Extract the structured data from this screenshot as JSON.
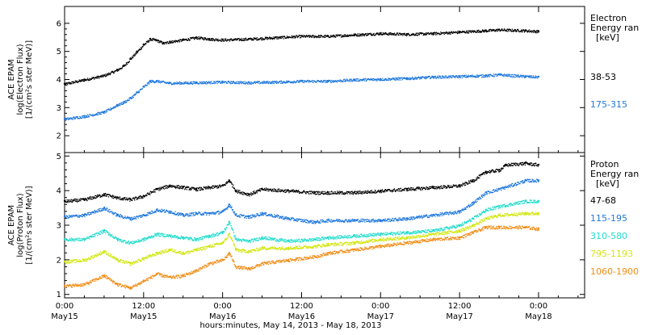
{
  "chart_data": [
    {
      "type": "scatter",
      "panel": "electron",
      "ylabel": [
        "ACE EPAM",
        "log(Electron Flux)",
        "[1/(cm²s ster MeV)]"
      ],
      "ylim": [
        1.4,
        6.6
      ],
      "yticks": [
        2,
        3,
        4,
        5,
        6
      ],
      "legend_title": [
        "Electron",
        "Energy ran",
        "[keV]"
      ],
      "series": [
        {
          "name": "38-53",
          "color": "#000000",
          "points": [
            [
              0,
              3.85
            ],
            [
              3,
              4.0
            ],
            [
              6,
              4.15
            ],
            [
              8,
              4.35
            ],
            [
              9,
              4.5
            ],
            [
              10,
              4.75
            ],
            [
              11,
              5.0
            ],
            [
              12,
              5.25
            ],
            [
              13,
              5.45
            ],
            [
              14,
              5.4
            ],
            [
              15,
              5.3
            ],
            [
              16,
              5.35
            ],
            [
              18,
              5.42
            ],
            [
              20,
              5.5
            ],
            [
              22,
              5.45
            ],
            [
              24,
              5.42
            ],
            [
              28,
              5.45
            ],
            [
              32,
              5.5
            ],
            [
              36,
              5.55
            ],
            [
              40,
              5.55
            ],
            [
              44,
              5.6
            ],
            [
              48,
              5.65
            ],
            [
              52,
              5.62
            ],
            [
              56,
              5.65
            ],
            [
              60,
              5.7
            ],
            [
              64,
              5.75
            ],
            [
              66,
              5.78
            ],
            [
              70,
              5.75
            ],
            [
              72,
              5.72
            ]
          ]
        },
        {
          "name": "175-315",
          "color": "#1e78dc",
          "points": [
            [
              0,
              2.6
            ],
            [
              3,
              2.7
            ],
            [
              6,
              2.85
            ],
            [
              8,
              3.1
            ],
            [
              9,
              3.2
            ],
            [
              10,
              3.35
            ],
            [
              11,
              3.55
            ],
            [
              12,
              3.75
            ],
            [
              13,
              3.95
            ],
            [
              14,
              3.95
            ],
            [
              16,
              3.88
            ],
            [
              20,
              3.9
            ],
            [
              24,
              3.92
            ],
            [
              28,
              3.9
            ],
            [
              32,
              3.92
            ],
            [
              36,
              3.95
            ],
            [
              40,
              3.95
            ],
            [
              44,
              4.0
            ],
            [
              48,
              4.02
            ],
            [
              52,
              4.05
            ],
            [
              56,
              4.1
            ],
            [
              60,
              4.12
            ],
            [
              64,
              4.15
            ],
            [
              66,
              4.18
            ],
            [
              70,
              4.12
            ],
            [
              72,
              4.1
            ]
          ]
        }
      ]
    },
    {
      "type": "scatter",
      "panel": "proton",
      "ylabel": [
        "ACE EPAM",
        "log(Proton Flux)",
        "[1/(cm²s ster MeV)]"
      ],
      "ylim": [
        0.9,
        5.1
      ],
      "yticks": [
        1,
        2,
        3,
        4,
        5
      ],
      "legend_title": [
        "Proton",
        "Energy ran",
        "[keV]"
      ],
      "series": [
        {
          "name": "47-68",
          "color": "#000000",
          "points": [
            [
              0,
              3.7
            ],
            [
              3,
              3.75
            ],
            [
              6,
              3.9
            ],
            [
              8,
              3.8
            ],
            [
              10,
              3.75
            ],
            [
              12,
              3.85
            ],
            [
              14,
              4.05
            ],
            [
              16,
              4.15
            ],
            [
              18,
              4.1
            ],
            [
              20,
              4.05
            ],
            [
              22,
              4.1
            ],
            [
              24,
              4.15
            ],
            [
              25,
              4.3
            ],
            [
              26,
              4.0
            ],
            [
              28,
              3.9
            ],
            [
              30,
              4.05
            ],
            [
              34,
              4.0
            ],
            [
              38,
              3.95
            ],
            [
              40,
              3.95
            ],
            [
              44,
              3.95
            ],
            [
              48,
              4.0
            ],
            [
              52,
              4.05
            ],
            [
              56,
              4.1
            ],
            [
              60,
              4.15
            ],
            [
              62,
              4.3
            ],
            [
              64,
              4.55
            ],
            [
              66,
              4.6
            ],
            [
              67,
              4.75
            ],
            [
              70,
              4.8
            ],
            [
              72,
              4.75
            ]
          ]
        },
        {
          "name": "115-195",
          "color": "#1e78dc",
          "points": [
            [
              0,
              3.25
            ],
            [
              3,
              3.3
            ],
            [
              6,
              3.5
            ],
            [
              8,
              3.3
            ],
            [
              10,
              3.2
            ],
            [
              12,
              3.3
            ],
            [
              14,
              3.45
            ],
            [
              16,
              3.4
            ],
            [
              18,
              3.3
            ],
            [
              20,
              3.35
            ],
            [
              22,
              3.35
            ],
            [
              24,
              3.4
            ],
            [
              25,
              3.6
            ],
            [
              26,
              3.3
            ],
            [
              28,
              3.25
            ],
            [
              30,
              3.35
            ],
            [
              34,
              3.2
            ],
            [
              38,
              3.1
            ],
            [
              40,
              3.15
            ],
            [
              44,
              3.15
            ],
            [
              48,
              3.15
            ],
            [
              52,
              3.2
            ],
            [
              56,
              3.3
            ],
            [
              60,
              3.4
            ],
            [
              62,
              3.65
            ],
            [
              64,
              3.95
            ],
            [
              66,
              4.05
            ],
            [
              70,
              4.3
            ],
            [
              72,
              4.3
            ]
          ]
        },
        {
          "name": "310-580",
          "color": "#22dccc",
          "points": [
            [
              0,
              2.6
            ],
            [
              3,
              2.6
            ],
            [
              6,
              2.85
            ],
            [
              8,
              2.6
            ],
            [
              10,
              2.5
            ],
            [
              12,
              2.6
            ],
            [
              14,
              2.75
            ],
            [
              16,
              2.7
            ],
            [
              18,
              2.65
            ],
            [
              20,
              2.6
            ],
            [
              22,
              2.7
            ],
            [
              24,
              2.8
            ],
            [
              25,
              3.1
            ],
            [
              26,
              2.6
            ],
            [
              28,
              2.55
            ],
            [
              30,
              2.65
            ],
            [
              34,
              2.55
            ],
            [
              38,
              2.6
            ],
            [
              40,
              2.65
            ],
            [
              44,
              2.7
            ],
            [
              48,
              2.75
            ],
            [
              52,
              2.8
            ],
            [
              56,
              2.85
            ],
            [
              60,
              3.0
            ],
            [
              62,
              3.2
            ],
            [
              64,
              3.45
            ],
            [
              66,
              3.55
            ],
            [
              70,
              3.7
            ],
            [
              72,
              3.7
            ]
          ]
        },
        {
          "name": "795-1193",
          "color": "#d2e610",
          "points": [
            [
              0,
              1.95
            ],
            [
              3,
              2.0
            ],
            [
              6,
              2.25
            ],
            [
              8,
              2.0
            ],
            [
              10,
              1.9
            ],
            [
              12,
              2.05
            ],
            [
              14,
              2.2
            ],
            [
              16,
              2.3
            ],
            [
              18,
              2.2
            ],
            [
              20,
              2.3
            ],
            [
              22,
              2.4
            ],
            [
              24,
              2.5
            ],
            [
              25,
              2.75
            ],
            [
              26,
              2.3
            ],
            [
              28,
              2.25
            ],
            [
              30,
              2.35
            ],
            [
              34,
              2.35
            ],
            [
              38,
              2.4
            ],
            [
              40,
              2.45
            ],
            [
              44,
              2.5
            ],
            [
              48,
              2.6
            ],
            [
              52,
              2.65
            ],
            [
              56,
              2.75
            ],
            [
              60,
              2.85
            ],
            [
              62,
              3.0
            ],
            [
              64,
              3.2
            ],
            [
              66,
              3.3
            ],
            [
              70,
              3.35
            ],
            [
              72,
              3.35
            ]
          ]
        },
        {
          "name": "1060-1900",
          "color": "#f08c14",
          "points": [
            [
              0,
              1.25
            ],
            [
              3,
              1.3
            ],
            [
              6,
              1.55
            ],
            [
              8,
              1.3
            ],
            [
              10,
              1.2
            ],
            [
              12,
              1.4
            ],
            [
              14,
              1.6
            ],
            [
              16,
              1.5
            ],
            [
              18,
              1.55
            ],
            [
              20,
              1.7
            ],
            [
              22,
              1.9
            ],
            [
              24,
              2.0
            ],
            [
              25,
              2.2
            ],
            [
              26,
              1.8
            ],
            [
              28,
              1.75
            ],
            [
              30,
              1.9
            ],
            [
              34,
              2.0
            ],
            [
              38,
              2.1
            ],
            [
              40,
              2.2
            ],
            [
              44,
              2.3
            ],
            [
              48,
              2.4
            ],
            [
              52,
              2.5
            ],
            [
              56,
              2.6
            ],
            [
              60,
              2.65
            ],
            [
              62,
              2.8
            ],
            [
              64,
              2.95
            ],
            [
              66,
              2.95
            ],
            [
              70,
              2.95
            ],
            [
              72,
              2.9
            ]
          ]
        }
      ]
    }
  ],
  "x_axis": {
    "ticks": [
      {
        "h": 0,
        "time": "0:00",
        "date": "May15"
      },
      {
        "h": 12,
        "time": "12:00",
        "date": "May15"
      },
      {
        "h": 24,
        "time": "0:00",
        "date": "May16"
      },
      {
        "h": 36,
        "time": "12:00",
        "date": "May16"
      },
      {
        "h": 48,
        "time": "0:00",
        "date": "May17"
      },
      {
        "h": 60,
        "time": "12:00",
        "date": "May17"
      },
      {
        "h": 72,
        "time": "0:00",
        "date": "May18"
      }
    ],
    "xlim": [
      0,
      79
    ],
    "label": "hours:minutes, May 14, 2013 - May 18, 2013"
  }
}
